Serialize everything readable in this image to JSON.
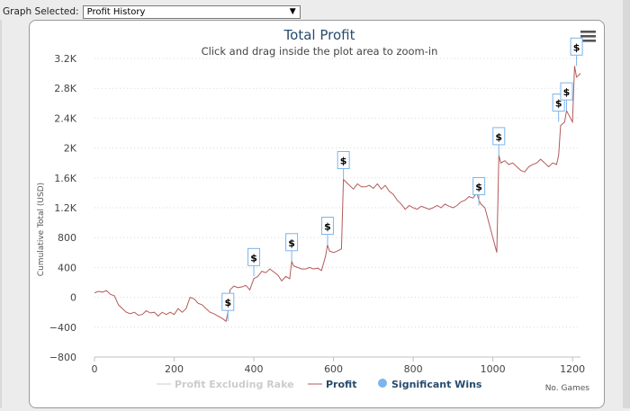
{
  "selector": {
    "label": "Graph Selected:",
    "value": "Profit History"
  },
  "colors": {
    "profit": "#b45a5a",
    "significant_wins": "#7cb5ec",
    "profit_excluding_rake": "#cccccc",
    "title": "#274b6d"
  },
  "chart_data": {
    "type": "line",
    "title": "Total Profit",
    "subtitle": "Click and drag inside the plot area to zoom-in",
    "xlabel": "No. Games",
    "ylabel": "Cumulative Total (USD)",
    "xlim": [
      0,
      1220
    ],
    "ylim": [
      -800,
      3200
    ],
    "x_ticks": [
      0,
      200,
      400,
      600,
      800,
      1000,
      1200
    ],
    "y_ticks": [
      -800,
      -400,
      0,
      400,
      800,
      1200,
      1600,
      2000,
      2400,
      2800,
      3200
    ],
    "y_tick_labels": [
      "−800",
      "−400",
      "0",
      "400",
      "800",
      "1.2K",
      "1.6K",
      "2K",
      "2.4K",
      "2.8K",
      "3.2K"
    ],
    "legend_placement": "bottom",
    "legend": [
      "Profit Excluding Rake",
      "Profit",
      "Significant Wins"
    ],
    "series": [
      {
        "name": "Profit",
        "x": [
          0,
          10,
          20,
          30,
          40,
          50,
          60,
          70,
          80,
          90,
          100,
          110,
          120,
          130,
          140,
          150,
          160,
          170,
          180,
          190,
          200,
          210,
          220,
          230,
          240,
          250,
          260,
          270,
          280,
          290,
          300,
          310,
          320,
          330,
          335,
          340,
          350,
          360,
          370,
          380,
          390,
          400,
          410,
          420,
          430,
          440,
          450,
          460,
          470,
          480,
          490,
          495,
          500,
          510,
          520,
          530,
          540,
          550,
          560,
          570,
          580,
          585,
          590,
          600,
          610,
          620,
          625,
          630,
          640,
          650,
          660,
          670,
          680,
          690,
          700,
          710,
          720,
          730,
          740,
          750,
          760,
          770,
          780,
          790,
          800,
          810,
          820,
          830,
          840,
          850,
          860,
          870,
          880,
          890,
          900,
          910,
          920,
          930,
          940,
          950,
          960,
          965,
          970,
          980,
          990,
          1000,
          1010,
          1015,
          1020,
          1030,
          1040,
          1050,
          1060,
          1070,
          1080,
          1090,
          1100,
          1110,
          1120,
          1130,
          1140,
          1150,
          1160,
          1165,
          1170,
          1180,
          1185,
          1190,
          1200,
          1205,
          1210,
          1220
        ],
        "y": [
          60,
          80,
          70,
          90,
          40,
          20,
          -100,
          -150,
          -200,
          -220,
          -200,
          -240,
          -230,
          -180,
          -210,
          -200,
          -250,
          -200,
          -230,
          -200,
          -230,
          -150,
          -200,
          -150,
          0,
          -20,
          -80,
          -100,
          -150,
          -200,
          -220,
          -250,
          -280,
          -320,
          -200,
          100,
          150,
          130,
          140,
          160,
          100,
          250,
          280,
          350,
          330,
          380,
          340,
          300,
          220,
          280,
          250,
          480,
          420,
          400,
          380,
          380,
          400,
          380,
          390,
          360,
          550,
          700,
          620,
          600,
          620,
          650,
          1580,
          1550,
          1500,
          1450,
          1520,
          1480,
          1480,
          1500,
          1460,
          1520,
          1450,
          1500,
          1420,
          1380,
          1300,
          1250,
          1180,
          1230,
          1200,
          1180,
          1220,
          1200,
          1180,
          1200,
          1230,
          1200,
          1250,
          1220,
          1200,
          1230,
          1280,
          1300,
          1350,
          1330,
          1400,
          1300,
          1250,
          1200,
          1000,
          800,
          600,
          1900,
          1800,
          1830,
          1780,
          1800,
          1750,
          1700,
          1680,
          1750,
          1780,
          1800,
          1850,
          1800,
          1750,
          1800,
          1780,
          1900,
          2300,
          2350,
          2500,
          2450,
          2350,
          3100,
          2950,
          3000
        ]
      },
      {
        "name": "Significant Wins",
        "x": [
          335,
          400,
          495,
          585,
          625,
          965,
          1015,
          1165,
          1185,
          1210
        ],
        "y": [
          -320,
          280,
          480,
          700,
          1580,
          1230,
          1900,
          2350,
          2500,
          3100
        ]
      }
    ]
  }
}
